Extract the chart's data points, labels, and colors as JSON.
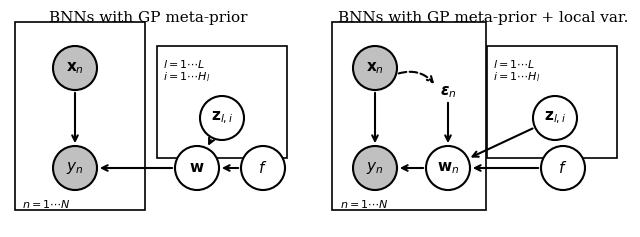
{
  "title1": "BNNs with GP meta-prior",
  "title2": "BNNs with GP meta-prior + local var.",
  "gray_fill": "#c0c0c0",
  "white_fill": "#ffffff",
  "bg_color": "#ffffff"
}
